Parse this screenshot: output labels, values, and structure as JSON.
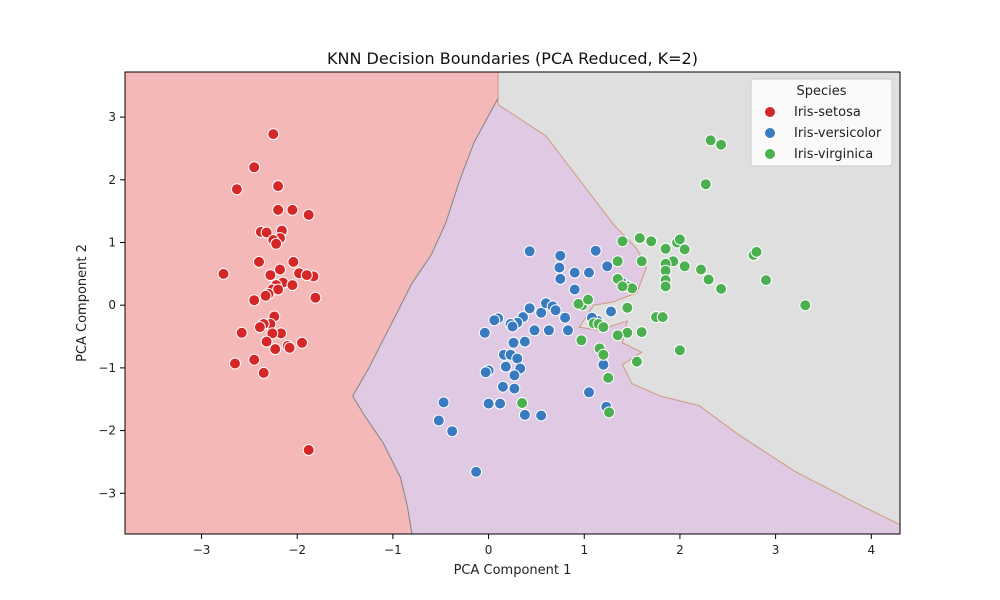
{
  "chart_data": {
    "type": "scatter",
    "title": "KNN Decision Boundaries (PCA Reduced, K=2)",
    "xlabel": "PCA Component 1",
    "ylabel": "PCA Component 2",
    "xlim": [
      -3.8,
      4.3
    ],
    "ylim": [
      -3.65,
      3.72
    ],
    "xticks": [
      -3,
      -2,
      -1,
      0,
      1,
      2,
      3,
      4
    ],
    "xtick_labels": [
      "−3",
      "−2",
      "−1",
      "0",
      "1",
      "2",
      "3",
      "4"
    ],
    "yticks": [
      -3,
      -2,
      -1,
      0,
      1,
      2,
      3
    ],
    "ytick_labels": [
      "−3",
      "−2",
      "−1",
      "0",
      "1",
      "2",
      "3"
    ],
    "legend": {
      "title": "Species",
      "position": "top-right",
      "entries": [
        "Iris-setosa",
        "Iris-versicolor",
        "Iris-virginica"
      ]
    },
    "regions": [
      {
        "name": "Iris-setosa",
        "color": "#f4b8b8",
        "edge": "#8a8a8a",
        "polygon": [
          [
            -3.8,
            3.72
          ],
          [
            0.1,
            3.72
          ],
          [
            0.1,
            3.3
          ],
          [
            -0.15,
            2.6
          ],
          [
            -0.3,
            2.0
          ],
          [
            -0.45,
            1.3
          ],
          [
            -0.6,
            0.8
          ],
          [
            -0.8,
            0.35
          ],
          [
            -0.95,
            -0.1
          ],
          [
            -1.1,
            -0.55
          ],
          [
            -1.25,
            -1.0
          ],
          [
            -1.42,
            -1.45
          ],
          [
            -1.3,
            -1.75
          ],
          [
            -1.1,
            -2.2
          ],
          [
            -0.92,
            -2.75
          ],
          [
            -0.85,
            -3.2
          ],
          [
            -0.8,
            -3.65
          ],
          [
            -3.8,
            -3.65
          ]
        ]
      },
      {
        "name": "Iris-versicolor",
        "color": "#e0c9e3",
        "edge": "#8a8a8a",
        "polygon": [
          [
            0.1,
            3.3
          ],
          [
            0.1,
            3.2
          ],
          [
            0.6,
            2.7
          ],
          [
            0.8,
            2.3
          ],
          [
            1.0,
            1.9
          ],
          [
            1.3,
            1.3
          ],
          [
            1.55,
            0.9
          ],
          [
            1.65,
            0.6
          ],
          [
            1.55,
            0.2
          ],
          [
            1.3,
            0.05
          ],
          [
            1.1,
            0.0
          ],
          [
            0.95,
            -0.35
          ],
          [
            1.15,
            -0.4
          ],
          [
            1.45,
            -0.25
          ],
          [
            1.4,
            -0.6
          ],
          [
            1.6,
            -0.75
          ],
          [
            1.4,
            -0.95
          ],
          [
            1.5,
            -1.25
          ],
          [
            1.8,
            -1.45
          ],
          [
            2.2,
            -1.6
          ],
          [
            2.6,
            -2.05
          ],
          [
            3.2,
            -2.65
          ],
          [
            3.9,
            -3.2
          ],
          [
            4.3,
            -3.5
          ],
          [
            4.3,
            -3.65
          ],
          [
            -0.8,
            -3.65
          ],
          [
            -0.85,
            -3.2
          ],
          [
            -0.92,
            -2.75
          ],
          [
            -1.1,
            -2.2
          ],
          [
            -1.3,
            -1.75
          ],
          [
            -1.42,
            -1.45
          ],
          [
            -1.25,
            -1.0
          ],
          [
            -1.1,
            -0.55
          ],
          [
            -0.95,
            -0.1
          ],
          [
            -0.8,
            0.35
          ],
          [
            -0.6,
            0.8
          ],
          [
            -0.45,
            1.3
          ],
          [
            -0.3,
            2.0
          ],
          [
            -0.15,
            2.6
          ]
        ]
      },
      {
        "name": "Iris-virginica",
        "color": "#dfdfdf",
        "edge": "#d4a08a",
        "polygon": [
          [
            0.1,
            3.72
          ],
          [
            4.3,
            3.72
          ],
          [
            4.3,
            -3.5
          ],
          [
            3.9,
            -3.2
          ],
          [
            3.2,
            -2.65
          ],
          [
            2.6,
            -2.05
          ],
          [
            2.2,
            -1.6
          ],
          [
            1.8,
            -1.45
          ],
          [
            1.5,
            -1.25
          ],
          [
            1.4,
            -0.95
          ],
          [
            1.6,
            -0.75
          ],
          [
            1.4,
            -0.6
          ],
          [
            1.45,
            -0.25
          ],
          [
            1.15,
            -0.4
          ],
          [
            0.95,
            -0.35
          ],
          [
            1.1,
            0.0
          ],
          [
            1.3,
            0.05
          ],
          [
            1.55,
            0.2
          ],
          [
            1.65,
            0.6
          ],
          [
            1.55,
            0.9
          ],
          [
            1.3,
            1.3
          ],
          [
            1.0,
            1.9
          ],
          [
            0.8,
            2.3
          ],
          [
            0.6,
            2.7
          ],
          [
            0.1,
            3.2
          ]
        ]
      }
    ],
    "series": [
      {
        "name": "Iris-setosa",
        "color": "#d62728",
        "points": [
          [
            -2.25,
            2.73
          ],
          [
            -2.45,
            2.2
          ],
          [
            -2.63,
            1.85
          ],
          [
            -2.2,
            1.9
          ],
          [
            -2.2,
            1.52
          ],
          [
            -2.05,
            1.52
          ],
          [
            -1.88,
            1.44
          ],
          [
            -2.38,
            1.17
          ],
          [
            -2.32,
            1.16
          ],
          [
            -2.16,
            1.19
          ],
          [
            -2.18,
            1.07
          ],
          [
            -2.25,
            1.04
          ],
          [
            -2.22,
            0.98
          ],
          [
            -2.4,
            0.69
          ],
          [
            -2.04,
            0.69
          ],
          [
            -2.18,
            0.57
          ],
          [
            -1.98,
            0.51
          ],
          [
            -2.28,
            0.48
          ],
          [
            -2.77,
            0.5
          ],
          [
            -1.83,
            0.46
          ],
          [
            -2.15,
            0.36
          ],
          [
            -2.22,
            0.32
          ],
          [
            -2.05,
            0.32
          ],
          [
            -1.9,
            0.48
          ],
          [
            -2.26,
            0.25
          ],
          [
            -2.2,
            0.25
          ],
          [
            -2.3,
            0.18
          ],
          [
            -2.33,
            0.15
          ],
          [
            -2.45,
            0.08
          ],
          [
            -1.81,
            0.12
          ],
          [
            -2.24,
            -0.18
          ],
          [
            -2.28,
            -0.3
          ],
          [
            -2.35,
            -0.3
          ],
          [
            -2.39,
            -0.35
          ],
          [
            -2.17,
            -0.45
          ],
          [
            -2.58,
            -0.44
          ],
          [
            -2.26,
            -0.45
          ],
          [
            -2.32,
            -0.58
          ],
          [
            -2.1,
            -0.65
          ],
          [
            -1.95,
            -0.6
          ],
          [
            -2.08,
            -0.68
          ],
          [
            -2.23,
            -0.7
          ],
          [
            -2.45,
            -0.87
          ],
          [
            -2.65,
            -0.93
          ],
          [
            -2.35,
            -1.08
          ],
          [
            -1.88,
            -2.31
          ]
        ]
      },
      {
        "name": "Iris-versicolor",
        "color": "#3a7bbf",
        "points": [
          [
            0.43,
            0.86
          ],
          [
            0.75,
            0.79
          ],
          [
            1.12,
            0.87
          ],
          [
            1.24,
            0.62
          ],
          [
            0.74,
            0.6
          ],
          [
            0.9,
            0.52
          ],
          [
            1.05,
            0.52
          ],
          [
            0.75,
            0.42
          ],
          [
            1.4,
            0.35
          ],
          [
            0.43,
            -0.05
          ],
          [
            0.55,
            -0.12
          ],
          [
            0.6,
            0.03
          ],
          [
            0.67,
            -0.02
          ],
          [
            0.7,
            -0.08
          ],
          [
            0.9,
            0.25
          ],
          [
            0.8,
            -0.2
          ],
          [
            0.36,
            -0.19
          ],
          [
            0.1,
            -0.21
          ],
          [
            0.06,
            -0.24
          ],
          [
            0.3,
            -0.28
          ],
          [
            0.23,
            -0.3
          ],
          [
            0.25,
            -0.34
          ],
          [
            0.48,
            -0.4
          ],
          [
            0.63,
            -0.4
          ],
          [
            0.83,
            -0.4
          ],
          [
            -0.04,
            -0.44
          ],
          [
            0.38,
            -0.58
          ],
          [
            0.26,
            -0.6
          ],
          [
            0.16,
            -0.79
          ],
          [
            0.23,
            -0.79
          ],
          [
            0.3,
            -0.85
          ],
          [
            0.18,
            -0.98
          ],
          [
            0.33,
            -1.01
          ],
          [
            0.0,
            -1.04
          ],
          [
            -0.03,
            -1.07
          ],
          [
            0.27,
            -1.12
          ],
          [
            0.15,
            -1.3
          ],
          [
            0.27,
            -1.33
          ],
          [
            0.0,
            -1.57
          ],
          [
            0.12,
            -1.57
          ],
          [
            0.38,
            -1.75
          ],
          [
            0.55,
            -1.76
          ],
          [
            -0.47,
            -1.55
          ],
          [
            -0.52,
            -1.84
          ],
          [
            -0.38,
            -2.01
          ],
          [
            -0.13,
            -2.66
          ],
          [
            1.05,
            -1.39
          ],
          [
            1.23,
            -1.62
          ],
          [
            1.2,
            -0.95
          ],
          [
            1.14,
            -0.25
          ],
          [
            1.08,
            -0.2
          ],
          [
            1.28,
            -0.1
          ]
        ]
      },
      {
        "name": "Iris-virginica",
        "color": "#4caf50",
        "points": [
          [
            2.32,
            2.63
          ],
          [
            2.43,
            2.56
          ],
          [
            2.27,
            1.93
          ],
          [
            1.4,
            1.02
          ],
          [
            1.58,
            1.07
          ],
          [
            1.7,
            1.02
          ],
          [
            1.97,
            1.0
          ],
          [
            2.0,
            1.05
          ],
          [
            2.05,
            0.89
          ],
          [
            1.85,
            0.9
          ],
          [
            1.93,
            0.7
          ],
          [
            1.85,
            0.66
          ],
          [
            1.85,
            0.55
          ],
          [
            2.05,
            0.62
          ],
          [
            2.22,
            0.57
          ],
          [
            2.77,
            0.8
          ],
          [
            2.8,
            0.85
          ],
          [
            2.3,
            0.41
          ],
          [
            2.43,
            0.26
          ],
          [
            2.9,
            0.4
          ],
          [
            3.31,
            0.0
          ],
          [
            1.35,
            0.7
          ],
          [
            1.6,
            0.7
          ],
          [
            1.85,
            0.4
          ],
          [
            1.85,
            0.3
          ],
          [
            1.35,
            0.42
          ],
          [
            1.45,
            0.3
          ],
          [
            1.5,
            0.27
          ],
          [
            1.4,
            0.3
          ],
          [
            0.98,
            0.0
          ],
          [
            0.94,
            0.02
          ],
          [
            1.04,
            0.09
          ],
          [
            1.45,
            -0.04
          ],
          [
            1.1,
            -0.29
          ],
          [
            1.15,
            -0.3
          ],
          [
            1.2,
            -0.35
          ],
          [
            1.45,
            -0.44
          ],
          [
            1.6,
            -0.43
          ],
          [
            1.75,
            -0.19
          ],
          [
            1.82,
            -0.19
          ],
          [
            1.35,
            -0.48
          ],
          [
            0.97,
            -0.56
          ],
          [
            1.16,
            -0.69
          ],
          [
            1.2,
            -0.79
          ],
          [
            1.55,
            -0.9
          ],
          [
            2.0,
            -0.72
          ],
          [
            1.25,
            -1.16
          ],
          [
            0.35,
            -1.56
          ],
          [
            1.26,
            -1.71
          ]
        ]
      }
    ]
  }
}
